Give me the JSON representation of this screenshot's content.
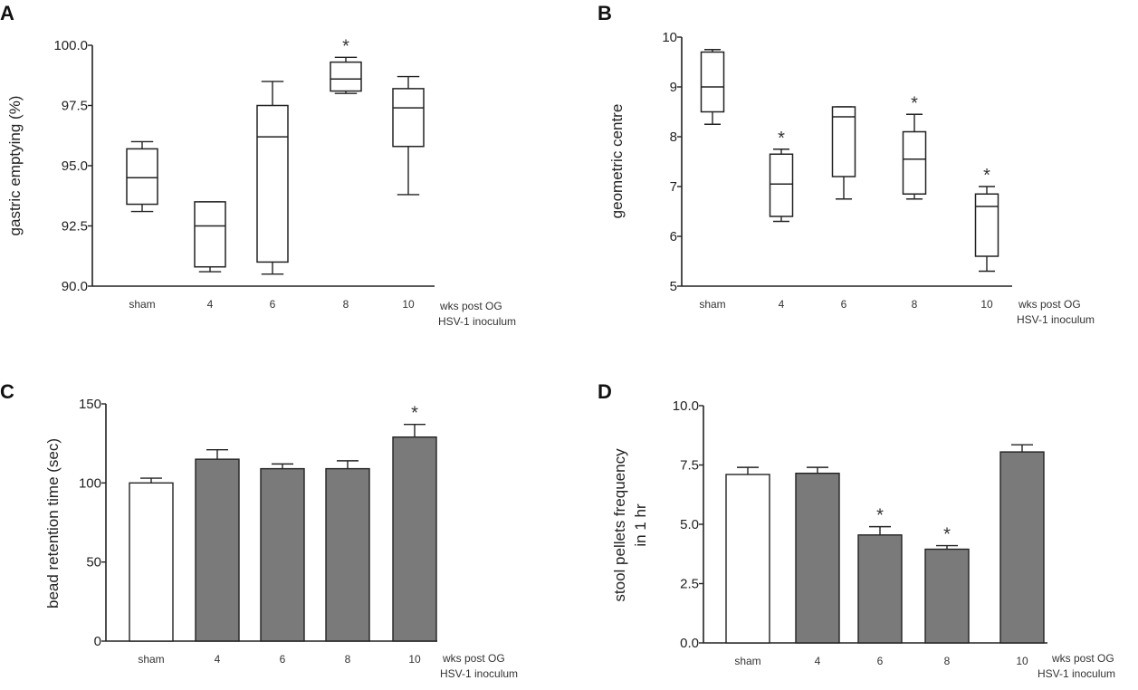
{
  "chart_data": [
    {
      "panel": "A",
      "type": "box",
      "ylabel": "gastric emptying (%)",
      "ylim": [
        90.0,
        100.0
      ],
      "yticks": [
        "90.0",
        "92.5",
        "95.0",
        "97.5",
        "100.0"
      ],
      "categories": [
        "sham",
        "4",
        "6",
        "8",
        "10"
      ],
      "note_lines": [
        "wks post OG",
        "HSV-1 inoculum"
      ],
      "boxes": [
        {
          "min": 93.1,
          "q1": 93.4,
          "median": 94.5,
          "q3": 95.7,
          "max": 96.0,
          "sig": ""
        },
        {
          "min": 90.6,
          "q1": 90.8,
          "median": 92.5,
          "q3": 93.5,
          "max": 93.5,
          "sig": ""
        },
        {
          "min": 90.5,
          "q1": 91.0,
          "median": 96.2,
          "q3": 97.5,
          "max": 98.5,
          "sig": ""
        },
        {
          "min": 98.0,
          "q1": 98.1,
          "median": 98.6,
          "q3": 99.3,
          "max": 99.5,
          "sig": "*"
        },
        {
          "min": 93.8,
          "q1": 95.8,
          "median": 97.4,
          "q3": 98.2,
          "max": 98.7,
          "sig": ""
        }
      ]
    },
    {
      "panel": "B",
      "type": "box",
      "ylabel": "geometric centre",
      "ylim": [
        5,
        10
      ],
      "yticks": [
        "5",
        "6",
        "7",
        "8",
        "9",
        "10"
      ],
      "categories": [
        "sham",
        "4",
        "6",
        "8",
        "10"
      ],
      "note_lines": [
        "wks post OG",
        "HSV-1 inoculum"
      ],
      "boxes": [
        {
          "min": 8.25,
          "q1": 8.5,
          "median": 9.0,
          "q3": 9.7,
          "max": 9.75,
          "sig": ""
        },
        {
          "min": 6.3,
          "q1": 6.4,
          "median": 7.05,
          "q3": 7.65,
          "max": 7.75,
          "sig": "*"
        },
        {
          "min": 6.75,
          "q1": 7.2,
          "median": 8.4,
          "q3": 8.6,
          "max": 8.6,
          "sig": ""
        },
        {
          "min": 6.75,
          "q1": 6.85,
          "median": 7.55,
          "q3": 8.1,
          "max": 8.45,
          "sig": "*"
        },
        {
          "min": 5.3,
          "q1": 5.6,
          "median": 6.6,
          "q3": 6.85,
          "max": 7.0,
          "sig": "*"
        }
      ]
    },
    {
      "panel": "C",
      "type": "bar",
      "ylabel": "bead retention time (sec)",
      "ylim": [
        0,
        150
      ],
      "yticks": [
        "0",
        "50",
        "100",
        "150"
      ],
      "categories": [
        "sham",
        "4",
        "6",
        "8",
        "10"
      ],
      "note_lines": [
        "wks post OG",
        "HSV-1 inoculum"
      ],
      "values": [
        100,
        115,
        109,
        109,
        129
      ],
      "errors": [
        3,
        6,
        3,
        5,
        8
      ],
      "sig": [
        "",
        "",
        "",
        "",
        "*"
      ],
      "fills": [
        "#ffffff",
        "#7a7a7a",
        "#7a7a7a",
        "#7a7a7a",
        "#7a7a7a"
      ]
    },
    {
      "panel": "D",
      "type": "bar",
      "ylabel_lines": [
        "stool pellets frequency",
        "in 1 hr"
      ],
      "ylim": [
        0,
        10
      ],
      "yticks": [
        "0.0",
        "2.5",
        "5.0",
        "7.5",
        "10.0"
      ],
      "categories": [
        "sham",
        "4",
        "6",
        "8",
        "10"
      ],
      "note_lines": [
        "wks post OG",
        "HSV-1 inoculum"
      ],
      "values": [
        7.1,
        7.15,
        4.55,
        3.95,
        8.05
      ],
      "errors": [
        0.3,
        0.25,
        0.35,
        0.15,
        0.3
      ],
      "sig": [
        "",
        "",
        "*",
        "*",
        ""
      ],
      "fills": [
        "#ffffff",
        "#7a7a7a",
        "#7a7a7a",
        "#7a7a7a",
        "#7a7a7a"
      ]
    }
  ]
}
